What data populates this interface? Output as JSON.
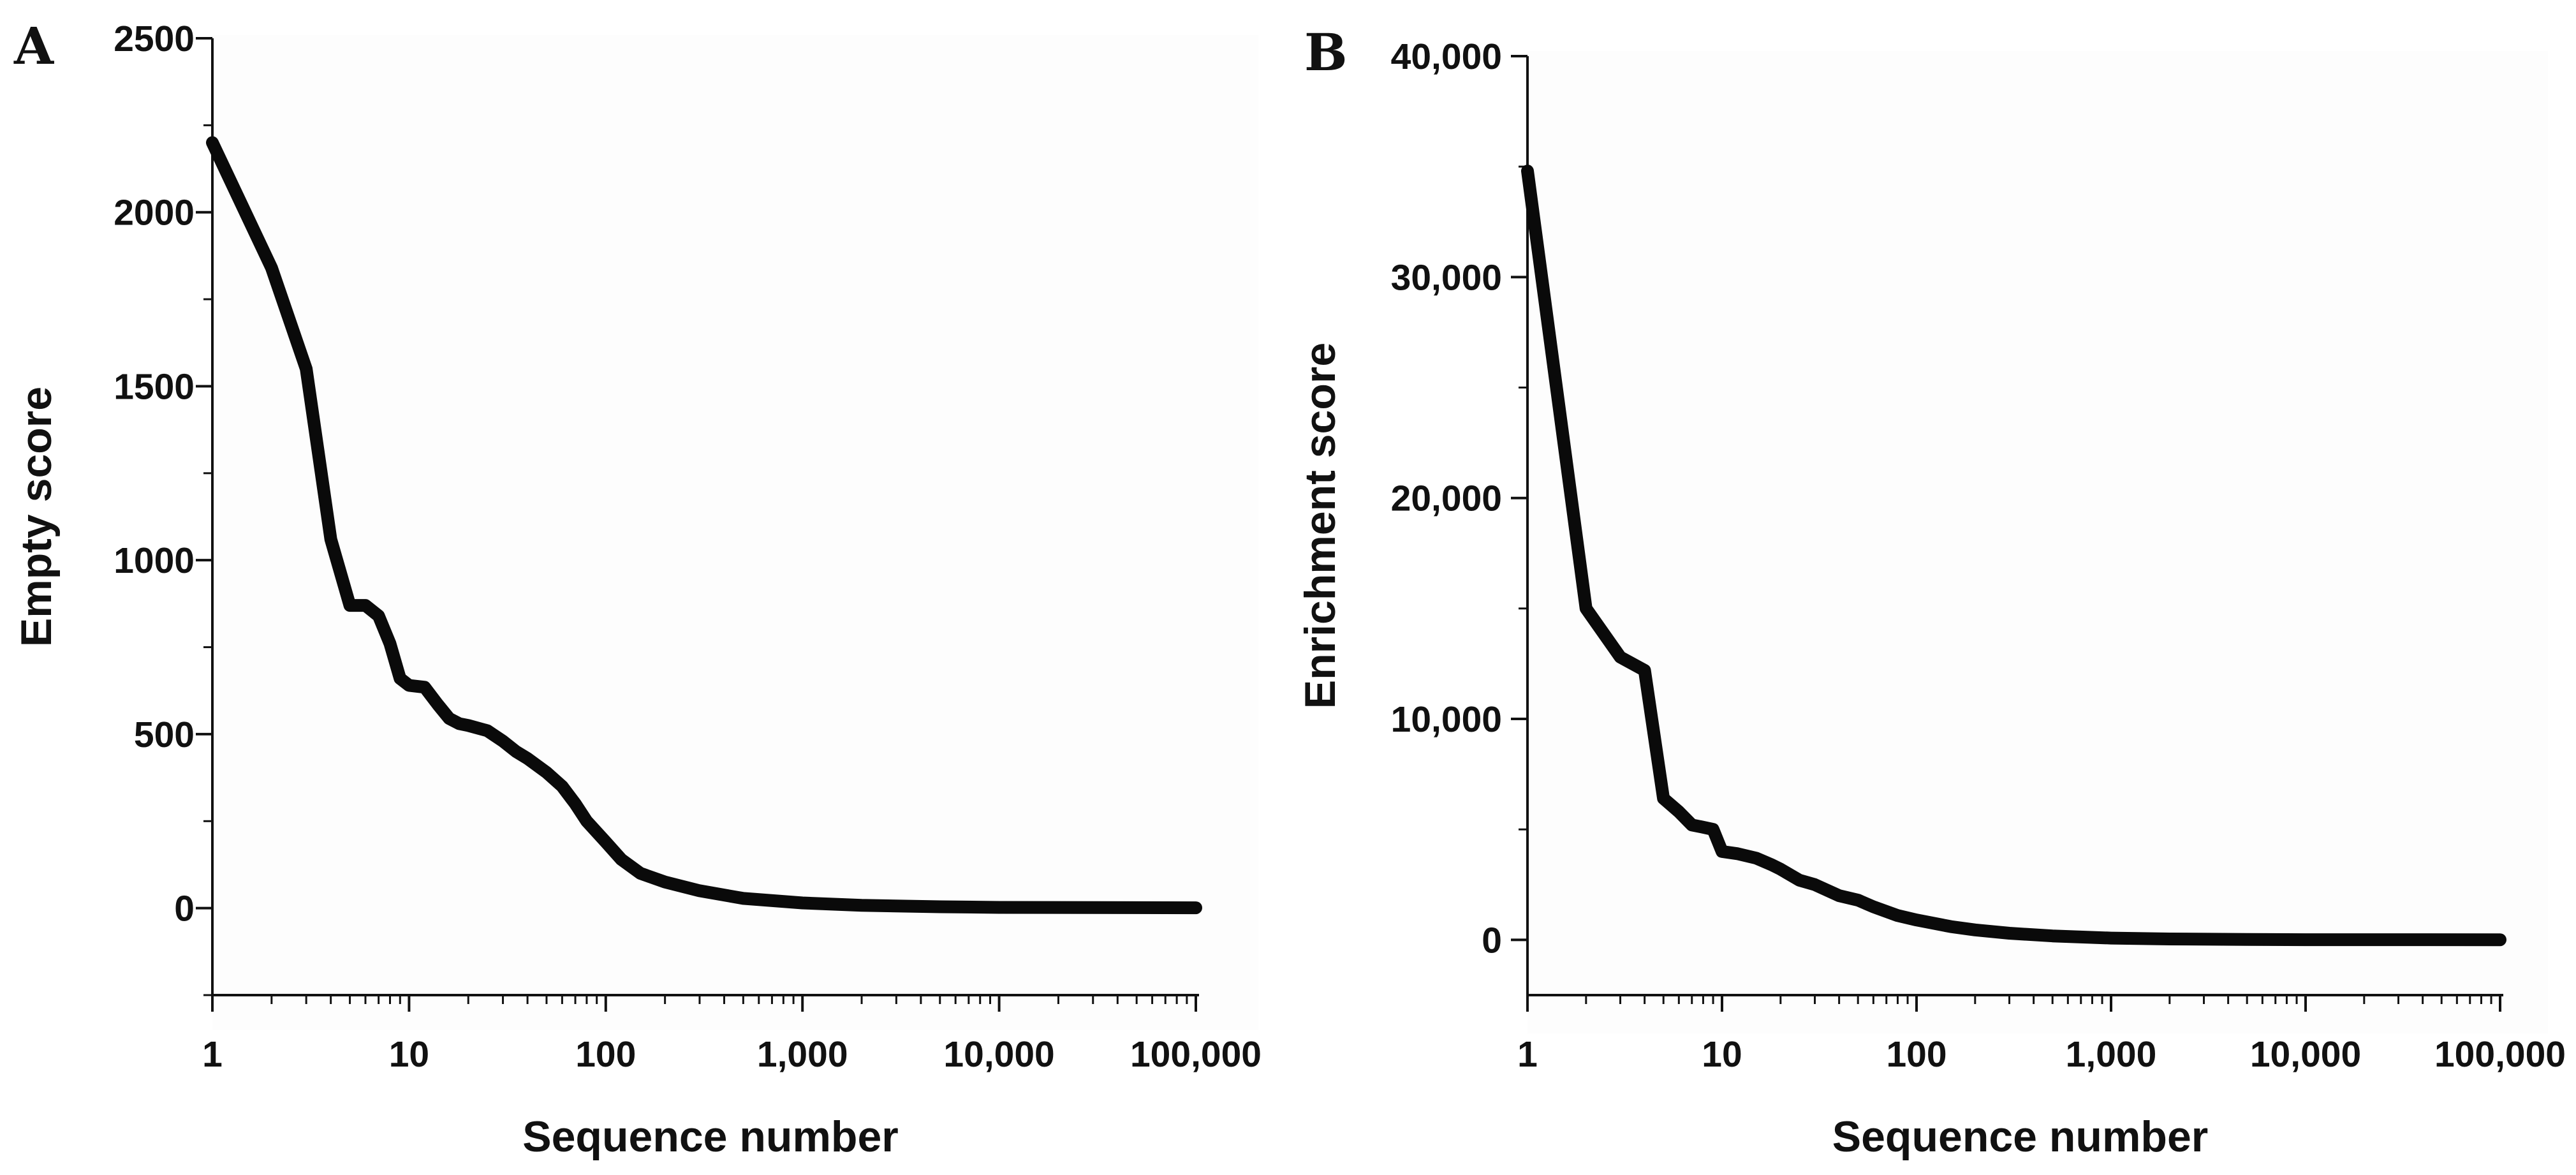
{
  "colors": {
    "line": "#0a0a0a",
    "axis": "#111111",
    "background": "#fdfdfd"
  },
  "chart_data": [
    {
      "type": "line",
      "panel_label": "A",
      "title": "",
      "xlabel": "Sequence number",
      "ylabel": "Empty score",
      "xscale": "log",
      "xlim": [
        1,
        100000
      ],
      "ylim": [
        -250,
        2500
      ],
      "x_ticks": [
        1,
        10,
        100,
        1000,
        10000,
        100000
      ],
      "x_tick_labels": [
        "1",
        "10",
        "100",
        "1,000",
        "10,000",
        "100,000"
      ],
      "y_ticks": [
        0,
        500,
        1000,
        1500,
        2000,
        2500
      ],
      "y_tick_labels": [
        "0",
        "500",
        "1000",
        "1500",
        "2000",
        "2500"
      ],
      "grid": false,
      "series": [
        {
          "x": [
            1,
            2,
            3,
            4,
            5,
            6,
            7,
            8,
            9,
            10,
            12,
            14,
            16,
            18,
            20,
            25,
            30,
            35,
            40,
            50,
            60,
            70,
            80,
            100,
            120,
            150,
            200,
            300,
            500,
            1000,
            2000,
            5000,
            10000,
            100000
          ],
          "y": [
            2200,
            1840,
            1550,
            1060,
            870,
            870,
            840,
            760,
            660,
            640,
            635,
            585,
            545,
            530,
            525,
            510,
            480,
            450,
            430,
            390,
            350,
            300,
            250,
            190,
            140,
            100,
            75,
            50,
            28,
            15,
            8,
            4,
            2,
            1
          ]
        }
      ]
    },
    {
      "type": "line",
      "panel_label": "B",
      "title": "",
      "xlabel": "Sequence number",
      "ylabel": "Enrichment score",
      "xscale": "log",
      "xlim": [
        1,
        100000
      ],
      "ylim": [
        -2500,
        40000
      ],
      "x_ticks": [
        1,
        10,
        100,
        1000,
        10000,
        100000
      ],
      "x_tick_labels": [
        "1",
        "10",
        "100",
        "1,000",
        "10,000",
        "100,000"
      ],
      "y_ticks": [
        0,
        10000,
        20000,
        30000,
        40000
      ],
      "y_tick_labels": [
        "0",
        "10,000",
        "20,000",
        "30,000",
        "40,000"
      ],
      "grid": false,
      "series": [
        {
          "x": [
            1,
            2,
            3,
            4,
            5,
            6,
            7,
            8,
            9,
            10,
            12,
            15,
            18,
            20,
            25,
            30,
            40,
            50,
            60,
            80,
            100,
            150,
            200,
            300,
            500,
            1000,
            2000,
            5000,
            10000,
            100000
          ],
          "y": [
            34800,
            15000,
            12800,
            12200,
            6400,
            5800,
            5200,
            5100,
            5000,
            4000,
            3900,
            3700,
            3400,
            3200,
            2700,
            2500,
            2000,
            1800,
            1500,
            1100,
            900,
            600,
            450,
            300,
            180,
            80,
            40,
            20,
            10,
            5
          ]
        }
      ]
    }
  ]
}
